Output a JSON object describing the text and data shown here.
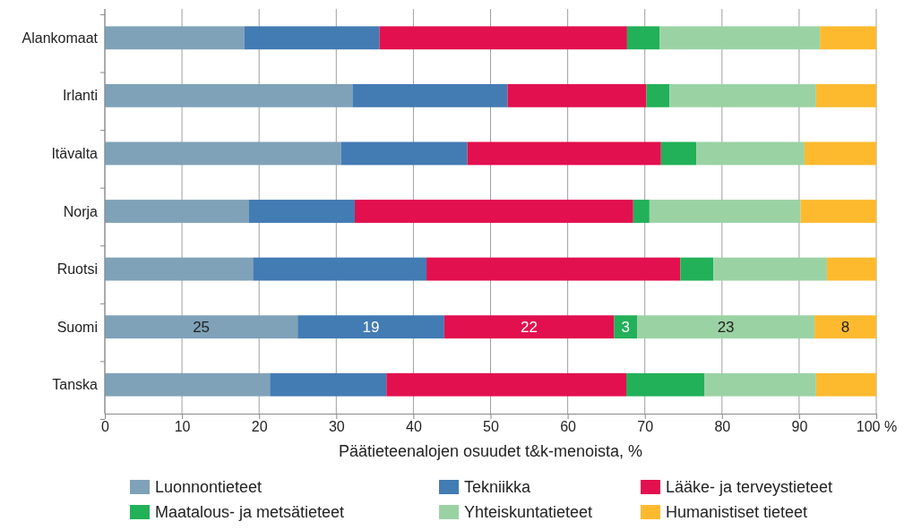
{
  "chart_data": {
    "type": "bar",
    "orientation": "horizontal",
    "stacked": true,
    "xlabel": "Päätieteenalojen osuudet t&k-menoista, %",
    "categories": [
      "Alankomaat",
      "Irlanti",
      "Itävalta",
      "Norja",
      "Ruotsi",
      "Suomi",
      "Tanska"
    ],
    "xlim": [
      0,
      100
    ],
    "xticks": [
      0,
      10,
      20,
      30,
      40,
      50,
      60,
      70,
      80,
      90,
      {
        "value": 100,
        "label": "100 %"
      }
    ],
    "grid": "x",
    "legend": "bottom",
    "series": [
      {
        "name": "Luonnontieteet",
        "color": "#7fa2b8",
        "values": [
          18.1,
          32.1,
          30.6,
          18.7,
          19.2,
          25,
          21.4
        ],
        "value_labels": [
          null,
          null,
          null,
          null,
          null,
          "25",
          null
        ]
      },
      {
        "name": "Tekniikka",
        "color": "#437bb3",
        "values": [
          17.5,
          20.1,
          16.4,
          13.7,
          22.5,
          19,
          15.1
        ],
        "value_labels": [
          null,
          null,
          null,
          null,
          null,
          "19",
          null
        ]
      },
      {
        "name": "Lääke- ja terveystieteet",
        "color": "#e2104f",
        "values": [
          32.1,
          18.0,
          25.1,
          36.1,
          32.9,
          22,
          31.1
        ],
        "value_labels": [
          null,
          null,
          null,
          null,
          null,
          "22",
          null
        ]
      },
      {
        "name": "Maatalous- ja metsätieteet",
        "color": "#22b058",
        "values": [
          4.2,
          3.0,
          4.6,
          2.1,
          4.3,
          3,
          10.1
        ],
        "value_labels": [
          null,
          null,
          null,
          null,
          null,
          "3",
          null
        ]
      },
      {
        "name": "Yhteiskuntatieteet",
        "color": "#9bd2a4",
        "values": [
          20.8,
          19.0,
          14.0,
          19.6,
          14.7,
          23,
          14.5
        ],
        "value_labels": [
          null,
          null,
          null,
          null,
          null,
          "23",
          null
        ]
      },
      {
        "name": "Humanistiset tieteet",
        "color": "#fdba2f",
        "values": [
          7.3,
          7.8,
          9.3,
          9.8,
          6.4,
          8,
          7.8
        ],
        "value_labels": [
          null,
          null,
          null,
          null,
          null,
          "8",
          null
        ]
      }
    ]
  }
}
